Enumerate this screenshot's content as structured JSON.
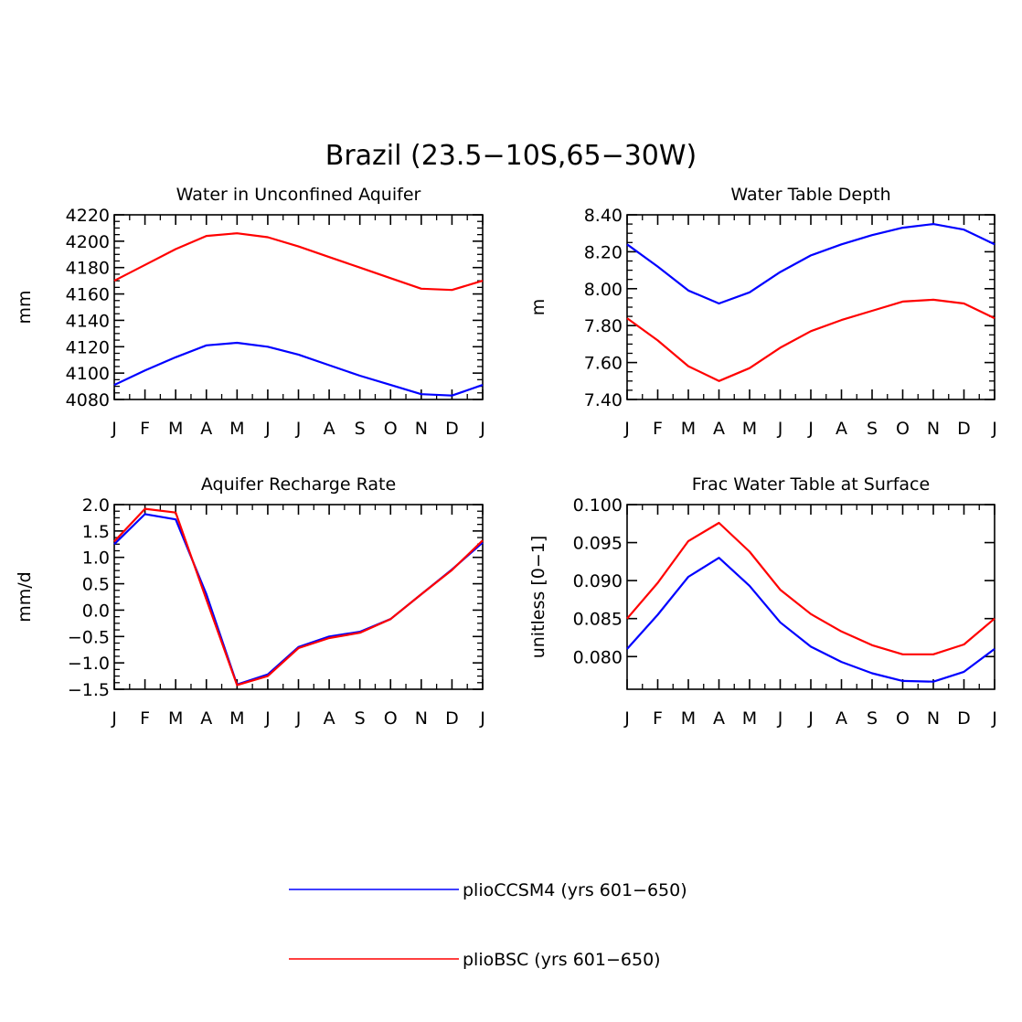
{
  "figure_title": "Brazil (23.5−10S,65−30W)",
  "colors": {
    "pliocCSM4": "#0000ff",
    "plioBSC": "#ff0000",
    "axis": "#000000"
  },
  "legend": [
    {
      "label": "plioCCSM4 (yrs 601−650)",
      "color": "#0000ff"
    },
    {
      "label": "plioBSC (yrs 601−650)",
      "color": "#ff0000"
    }
  ],
  "chart_data": [
    {
      "type": "line",
      "title": "Water in Unconfined Aquifer",
      "xlabel": "",
      "ylabel": "mm",
      "categories": [
        "J",
        "F",
        "M",
        "A",
        "M",
        "J",
        "J",
        "A",
        "S",
        "O",
        "N",
        "D",
        "J"
      ],
      "ylim": [
        4080,
        4220
      ],
      "yticks": [
        "4080",
        "4100",
        "4120",
        "4140",
        "4160",
        "4180",
        "4200",
        "4220"
      ],
      "series": [
        {
          "name": "plioCCSM4 (yrs 601−650)",
          "color": "#0000ff",
          "values": [
            4091,
            4102,
            4112,
            4121,
            4123,
            4120,
            4114,
            4106,
            4098,
            4091,
            4084,
            4083,
            4091
          ]
        },
        {
          "name": "plioBSC (yrs 601−650)",
          "color": "#ff0000",
          "values": [
            4170,
            4182,
            4194,
            4204,
            4206,
            4203,
            4196,
            4188,
            4180,
            4172,
            4164,
            4163,
            4170
          ]
        }
      ]
    },
    {
      "type": "line",
      "title": "Water Table Depth",
      "xlabel": "",
      "ylabel": "m",
      "categories": [
        "J",
        "F",
        "M",
        "A",
        "M",
        "J",
        "J",
        "A",
        "S",
        "O",
        "N",
        "D",
        "J"
      ],
      "ylim": [
        7.4,
        8.4
      ],
      "yticks": [
        "7.40",
        "7.60",
        "7.80",
        "8.00",
        "8.20",
        "8.40"
      ],
      "series": [
        {
          "name": "plioCCSM4 (yrs 601−650)",
          "color": "#0000ff",
          "values": [
            8.24,
            8.12,
            7.99,
            7.92,
            7.98,
            8.09,
            8.18,
            8.24,
            8.29,
            8.33,
            8.35,
            8.32,
            8.24
          ]
        },
        {
          "name": "plioBSC (yrs 601−650)",
          "color": "#ff0000",
          "values": [
            7.84,
            7.72,
            7.58,
            7.5,
            7.57,
            7.68,
            7.77,
            7.83,
            7.88,
            7.93,
            7.94,
            7.92,
            7.84
          ]
        }
      ]
    },
    {
      "type": "line",
      "title": "Aquifer Recharge Rate",
      "xlabel": "",
      "ylabel": "mm/d",
      "categories": [
        "J",
        "F",
        "M",
        "A",
        "M",
        "J",
        "J",
        "A",
        "S",
        "O",
        "N",
        "D",
        "J"
      ],
      "ylim": [
        -1.5,
        2.0
      ],
      "yticks": [
        "−1.5",
        "−1.0",
        "−0.5",
        "0.0",
        "0.5",
        "1.0",
        "1.5",
        "2.0"
      ],
      "series": [
        {
          "name": "plioCCSM4 (yrs 601−650)",
          "color": "#0000ff",
          "values": [
            1.25,
            1.82,
            1.72,
            0.3,
            -1.41,
            -1.22,
            -0.7,
            -0.5,
            -0.41,
            -0.17,
            0.3,
            0.77,
            1.28
          ]
        },
        {
          "name": "plioBSC (yrs 601−650)",
          "color": "#ff0000",
          "values": [
            1.3,
            1.92,
            1.85,
            0.2,
            -1.42,
            -1.25,
            -0.72,
            -0.53,
            -0.43,
            -0.17,
            0.3,
            0.76,
            1.32
          ]
        }
      ]
    },
    {
      "type": "line",
      "title": "Frac Water Table at Surface",
      "xlabel": "",
      "ylabel": "unitless [0−1]",
      "categories": [
        "J",
        "F",
        "M",
        "A",
        "M",
        "J",
        "J",
        "A",
        "S",
        "O",
        "N",
        "D",
        "J"
      ],
      "ylim": [
        0.0757,
        0.1
      ],
      "yticks": [
        "0.080",
        "0.085",
        "0.090",
        "0.095",
        "0.100"
      ],
      "series": [
        {
          "name": "plioCCSM4 (yrs 601−650)",
          "color": "#0000ff",
          "values": [
            0.081,
            0.0855,
            0.0905,
            0.093,
            0.0893,
            0.0845,
            0.0813,
            0.0793,
            0.0778,
            0.0768,
            0.0767,
            0.078,
            0.081
          ]
        },
        {
          "name": "plioBSC (yrs 601−650)",
          "color": "#ff0000",
          "values": [
            0.085,
            0.0897,
            0.0952,
            0.0976,
            0.0938,
            0.0888,
            0.0856,
            0.0833,
            0.0815,
            0.0803,
            0.0803,
            0.0816,
            0.085
          ]
        }
      ]
    }
  ]
}
